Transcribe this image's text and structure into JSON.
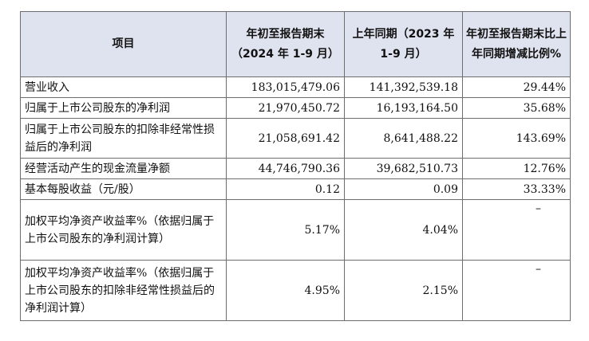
{
  "table": {
    "headers": [
      "项目",
      "年初至报告期末（2024 年 1-9 月）",
      "上年同期（2023 年 1-9 月）",
      "年初至报告期末比上年同期增减比例%"
    ],
    "rows": [
      {
        "item": "营业收入",
        "current": "183,015,479.06",
        "prior": "141,392,539.18",
        "change": "29.44%"
      },
      {
        "item": "归属于上市公司股东的净利润",
        "current": "21,970,450.72",
        "prior": "16,193,164.50",
        "change": "35.68%"
      },
      {
        "item": "归属于上市公司股东的扣除非经常性损益后的净利润",
        "current": "21,058,691.42",
        "prior": "8,641,488.22",
        "change": "143.69%"
      },
      {
        "item": "经营活动产生的现金流量净额",
        "current": "44,746,790.36",
        "prior": "39,682,510.73",
        "change": "12.76%"
      },
      {
        "item": "基本每股收益（元/股）",
        "current": "0.12",
        "prior": "0.09",
        "change": "33.33%"
      },
      {
        "item": "加权平均净资产收益率%（依据归属于上市公司股东的净利润计算）",
        "current": "5.17%",
        "prior": "4.04%",
        "change": "–"
      },
      {
        "item": "加权平均净资产收益率%（依据归属于上市公司股东的扣除非经常性损益后的净利润计算）",
        "current": "4.95%",
        "prior": "2.15%",
        "change": "–"
      }
    ]
  }
}
